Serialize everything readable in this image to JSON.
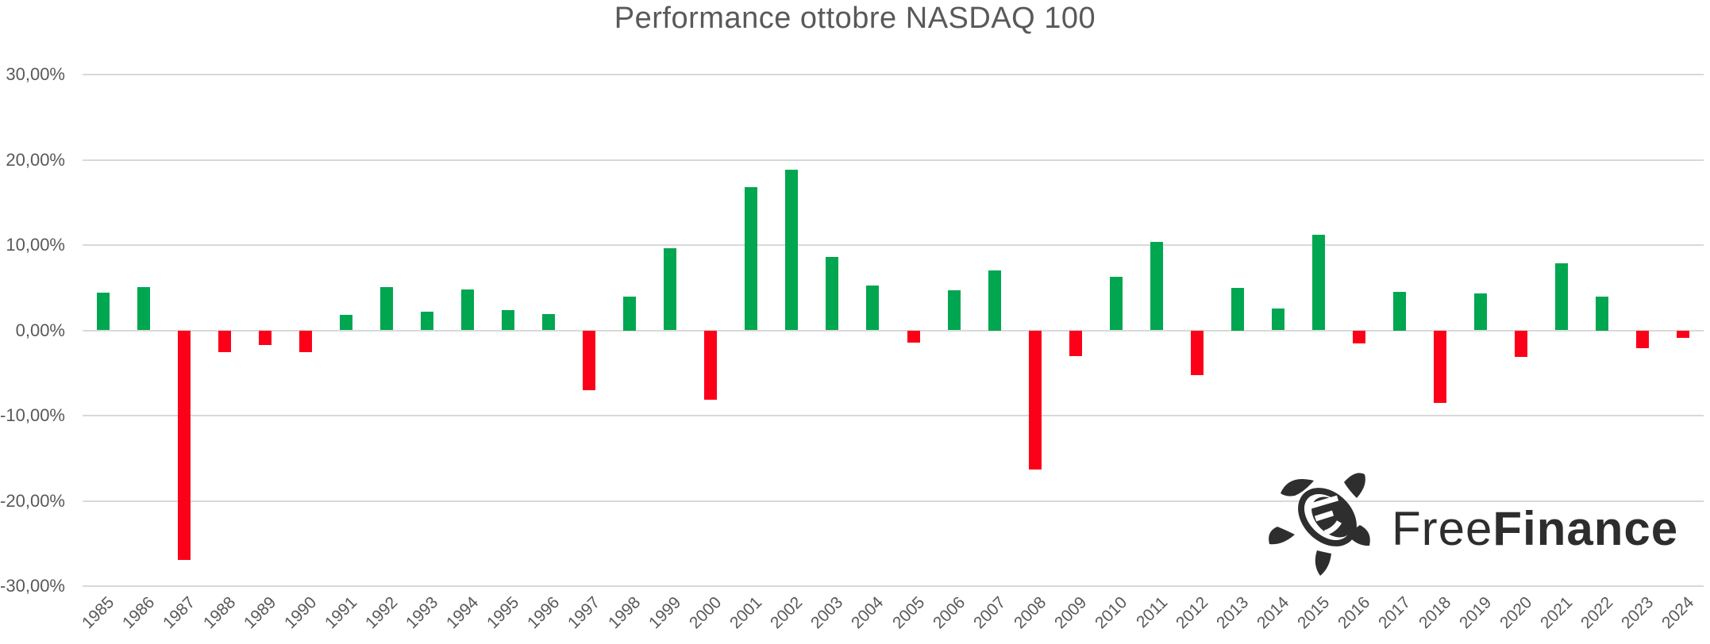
{
  "title": "Performance ottobre NASDAQ 100",
  "colors": {
    "positive_bar": "#00A650",
    "negative_bar": "#FC0019",
    "gridline": "#D9D9D9",
    "axis_text": "#595959",
    "title_text": "#595959",
    "logo_color": "#2E2E2E"
  },
  "logo": {
    "icon": "turtle-icon",
    "brand_first": "Free",
    "brand_second": "Finance"
  },
  "chart_data": {
    "type": "bar",
    "title": "Performance ottobre NASDAQ 100",
    "xlabel": "",
    "ylabel": "",
    "ylim": [
      -30,
      30
    ],
    "grid": true,
    "legend": "none",
    "value_format": "percent, Italian comma decimals",
    "y_ticks": [
      {
        "label": "30,00%",
        "value": 30
      },
      {
        "label": "20,00%",
        "value": 20
      },
      {
        "label": "10,00%",
        "value": 10
      },
      {
        "label": "0,00%",
        "value": 0
      },
      {
        "label": "-10,00%",
        "value": -10
      },
      {
        "label": "-20,00%",
        "value": -20
      },
      {
        "label": "-30,00%",
        "value": -30
      }
    ],
    "categories": [
      "1985",
      "1986",
      "1987",
      "1988",
      "1989",
      "1990",
      "1991",
      "1992",
      "1993",
      "1994",
      "1995",
      "1996",
      "1997",
      "1998",
      "1999",
      "2000",
      "2001",
      "2002",
      "2003",
      "2004",
      "2005",
      "2006",
      "2007",
      "2008",
      "2009",
      "2010",
      "2011",
      "2012",
      "2013",
      "2014",
      "2015",
      "2016",
      "2017",
      "2018",
      "2019",
      "2020",
      "2021",
      "2022",
      "2023",
      "2024"
    ],
    "values": [
      4.4,
      5.1,
      -26.9,
      -2.6,
      -1.7,
      -2.6,
      1.8,
      5.1,
      2.2,
      4.8,
      2.4,
      1.9,
      -7.0,
      4.0,
      9.6,
      -8.1,
      16.8,
      18.8,
      8.6,
      5.3,
      -1.4,
      4.7,
      7.0,
      -16.3,
      -3.0,
      6.3,
      10.4,
      -5.3,
      5.0,
      2.6,
      11.2,
      -1.5,
      4.5,
      -8.5,
      4.3,
      -3.1,
      7.9,
      4.0,
      -2.1,
      -0.9
    ]
  }
}
